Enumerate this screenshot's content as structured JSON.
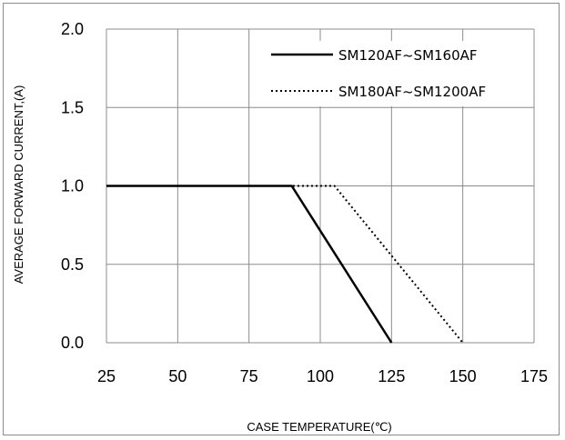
{
  "chart_data": {
    "type": "line",
    "xlabel": "CASE  TEMPERATURE(℃)",
    "ylabel": "AVERAGE FORWARD CURRENT,(A)",
    "xlim": [
      25,
      175
    ],
    "ylim": [
      0,
      2.0
    ],
    "x_ticks": [
      "25",
      "50",
      "75",
      "100",
      "125",
      "150",
      "175"
    ],
    "y_ticks": [
      "0.0",
      "0.5",
      "1.0",
      "1.5",
      "2.0"
    ],
    "grid": true,
    "legend_position": "top-right",
    "series": [
      {
        "name": "SM120AF~SM160AF",
        "style": "solid",
        "x": [
          25,
          90,
          125
        ],
        "y": [
          1.0,
          1.0,
          0.0
        ]
      },
      {
        "name": "SM180AF~SM1200AF",
        "style": "dotted",
        "x": [
          25,
          105,
          150
        ],
        "y": [
          1.0,
          1.0,
          0.0
        ]
      }
    ],
    "colors": {
      "line": "#000000",
      "grid": "#8c8c8c"
    }
  }
}
